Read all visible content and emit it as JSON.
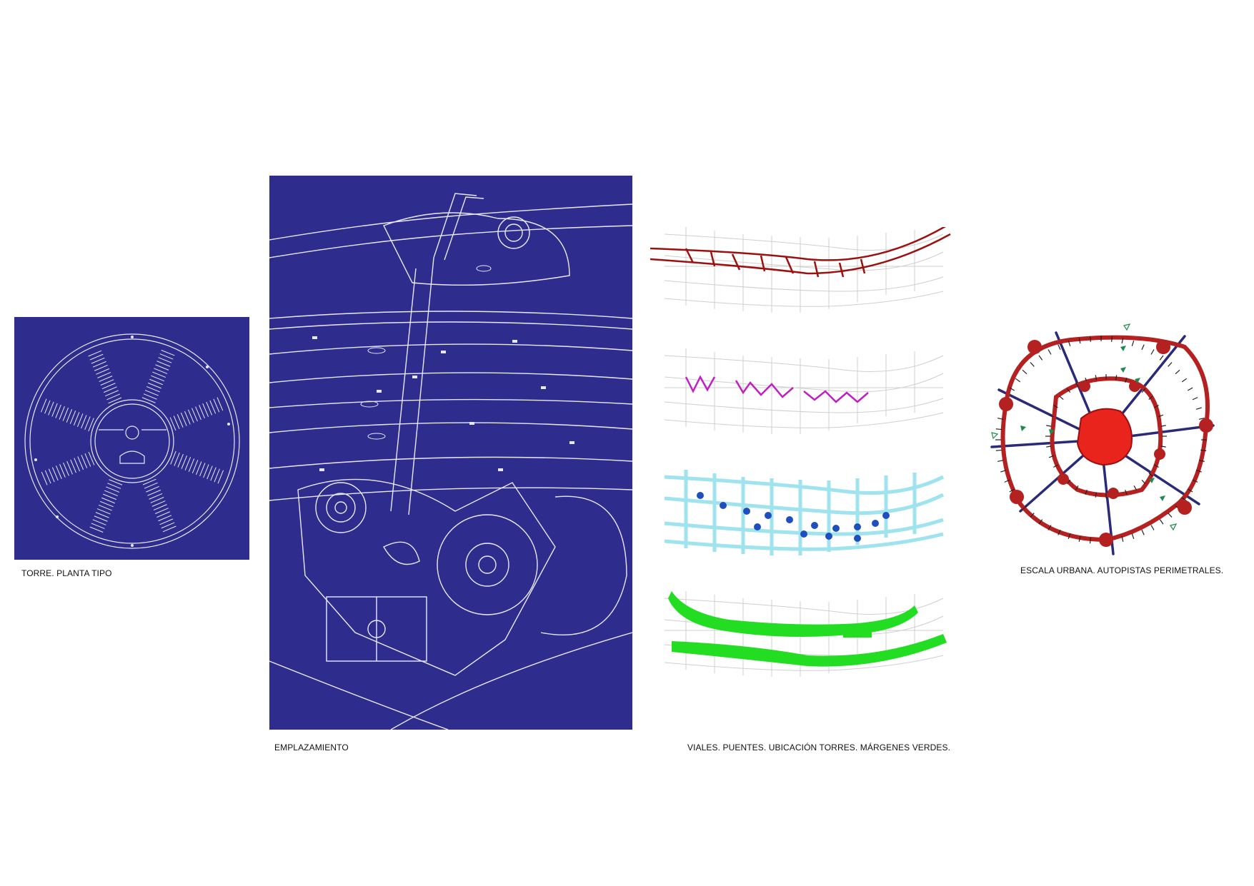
{
  "captions": {
    "tower": "TORRE. PLANTA TIPO",
    "site": "EMPLAZAMIENTO",
    "strips": "VIALES. PUENTES. UBICACIÓN TORRES. MÁRGENES VERDES.",
    "ring": "ESCALA URBANA. AUTOPISTAS PERIMETRALES."
  },
  "colors": {
    "blueprint": "#2e2c8c",
    "line_white": "#e8e8ff",
    "grid_gray": "#cfcfcf",
    "roads_red": "#9b1010",
    "bridges_magenta": "#c21fc2",
    "towers_cyan": "#9fe3ee",
    "towers_dot": "#1f4fbf",
    "green_margins": "#22dd22",
    "ring_red": "#b52020",
    "ring_core": "#e8241c",
    "radial_blue": "#2a2a78",
    "arrow_green": "#1f8a4f"
  }
}
